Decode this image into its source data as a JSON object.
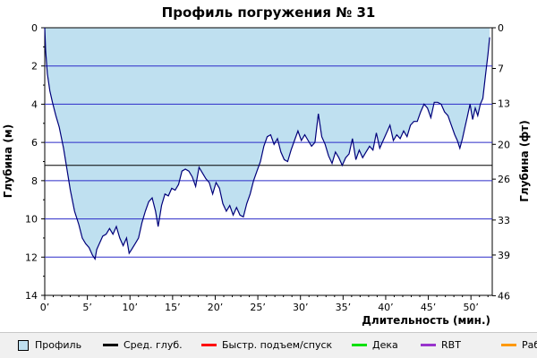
{
  "chart_data": {
    "type": "area",
    "title": "Профиль погружения № 31",
    "xlabel": "Длительность (мин.)",
    "ylabel_left": "Глубина (м)",
    "ylabel_right": "Глубина (фт)",
    "xlim": [
      0,
      52.5
    ],
    "ylim": [
      0,
      14
    ],
    "y_inverted": true,
    "x_ticks": [
      0,
      5,
      10,
      15,
      20,
      25,
      30,
      35,
      40,
      45,
      50
    ],
    "x_tick_labels": [
      "0’",
      "5’",
      "10’",
      "15’",
      "20’",
      "25’",
      "30’",
      "35’",
      "40’",
      "45’",
      "50’"
    ],
    "y_ticks": [
      0,
      2,
      4,
      6,
      8,
      10,
      12,
      14
    ],
    "y_tick_labels": [
      "0",
      "2",
      "4",
      "6",
      "8",
      "10",
      "12",
      "14"
    ],
    "y_right_ticks": [
      0,
      2.13,
      3.96,
      6.1,
      7.92,
      10.06,
      11.89,
      14.02
    ],
    "y_right_tick_labels": [
      "0",
      "7",
      "13",
      "20",
      "26",
      "33",
      "39",
      "46"
    ],
    "grid": true,
    "avg_depth": 7.2,
    "colors": {
      "fill": "#bfe0f0",
      "profile_line": "#00007a",
      "grid": "#2b2bc8",
      "avg_line": "#000000",
      "legend_bg": "#f0f0f0"
    },
    "series": [
      {
        "name": "Профиль",
        "x": [
          0,
          0.1,
          0.3,
          0.6,
          0.9,
          1.3,
          1.7,
          2.2,
          2.6,
          3.0,
          3.5,
          4.0,
          4.4,
          4.8,
          5.2,
          5.6,
          5.9,
          6.1,
          6.4,
          6.8,
          7.2,
          7.6,
          8.0,
          8.4,
          8.8,
          9.2,
          9.6,
          9.9,
          10.2,
          10.6,
          11.0,
          11.4,
          11.8,
          12.2,
          12.6,
          13.0,
          13.3,
          13.7,
          14.1,
          14.5,
          14.9,
          15.3,
          15.7,
          16.1,
          16.5,
          16.9,
          17.3,
          17.7,
          18.1,
          18.5,
          18.9,
          19.3,
          19.7,
          20.1,
          20.5,
          20.9,
          21.3,
          21.7,
          22.1,
          22.5,
          22.9,
          23.3,
          23.7,
          24.1,
          24.5,
          24.9,
          25.3,
          25.7,
          26.1,
          26.5,
          26.9,
          27.3,
          27.7,
          28.1,
          28.5,
          28.9,
          29.3,
          29.7,
          30.1,
          30.5,
          30.9,
          31.3,
          31.7,
          32.1,
          32.5,
          32.9,
          33.3,
          33.7,
          34.1,
          34.5,
          34.9,
          35.3,
          35.7,
          36.1,
          36.5,
          36.9,
          37.3,
          37.7,
          38.1,
          38.5,
          38.9,
          39.3,
          39.7,
          40.1,
          40.5,
          40.9,
          41.3,
          41.7,
          42.1,
          42.5,
          42.9,
          43.3,
          43.7,
          44.1,
          44.5,
          44.9,
          45.3,
          45.7,
          46.1,
          46.5,
          46.9,
          47.3,
          47.7,
          48.1,
          48.4,
          48.7,
          49.0,
          49.3,
          49.6,
          49.9,
          50.2,
          50.5,
          50.8,
          51.1,
          51.4,
          51.7,
          52.0,
          52.2
        ],
        "y": [
          0,
          1.2,
          2.4,
          3.3,
          3.9,
          4.6,
          5.2,
          6.3,
          7.4,
          8.5,
          9.6,
          10.3,
          11.0,
          11.3,
          11.5,
          11.9,
          12.1,
          11.6,
          11.3,
          10.9,
          10.8,
          10.5,
          10.8,
          10.4,
          11.0,
          11.4,
          11.0,
          11.8,
          11.6,
          11.3,
          11.0,
          10.2,
          9.6,
          9.1,
          8.9,
          9.6,
          10.4,
          9.3,
          8.7,
          8.8,
          8.4,
          8.5,
          8.2,
          7.5,
          7.4,
          7.5,
          7.8,
          8.3,
          7.3,
          7.6,
          7.9,
          8.1,
          8.7,
          8.1,
          8.4,
          9.2,
          9.6,
          9.3,
          9.8,
          9.4,
          9.8,
          9.9,
          9.2,
          8.7,
          8.0,
          7.5,
          7.0,
          6.2,
          5.7,
          5.6,
          6.1,
          5.8,
          6.5,
          6.9,
          7.0,
          6.4,
          5.9,
          5.4,
          5.9,
          5.6,
          5.9,
          6.2,
          6.0,
          4.5,
          5.7,
          6.1,
          6.7,
          7.1,
          6.5,
          6.8,
          7.2,
          6.8,
          6.6,
          5.8,
          6.9,
          6.4,
          6.8,
          6.5,
          6.2,
          6.4,
          5.5,
          6.3,
          5.9,
          5.5,
          5.1,
          5.9,
          5.6,
          5.8,
          5.4,
          5.7,
          5.1,
          4.9,
          4.9,
          4.4,
          4.0,
          4.2,
          4.7,
          3.9,
          3.9,
          4.0,
          4.4,
          4.6,
          5.1,
          5.6,
          5.9,
          6.3,
          5.8,
          5.2,
          4.6,
          4.0,
          4.8,
          4.2,
          4.6,
          4.0,
          3.7,
          2.5,
          1.4,
          0.5
        ]
      }
    ],
    "legend": [
      {
        "label": "Профиль",
        "kind": "box",
        "color": "#bfe0f0"
      },
      {
        "label": "Сред. глуб.",
        "kind": "line",
        "color": "#000000"
      },
      {
        "label": "Быстр. подъем/спуск",
        "kind": "line",
        "color": "#ff0000"
      },
      {
        "label": "Дека",
        "kind": "line",
        "color": "#00e000"
      },
      {
        "label": "RBT",
        "kind": "line",
        "color": "#9933cc"
      },
      {
        "label": "Раб.",
        "kind": "line",
        "color": "#ff9900"
      }
    ],
    "legend_placement": "bottom"
  }
}
